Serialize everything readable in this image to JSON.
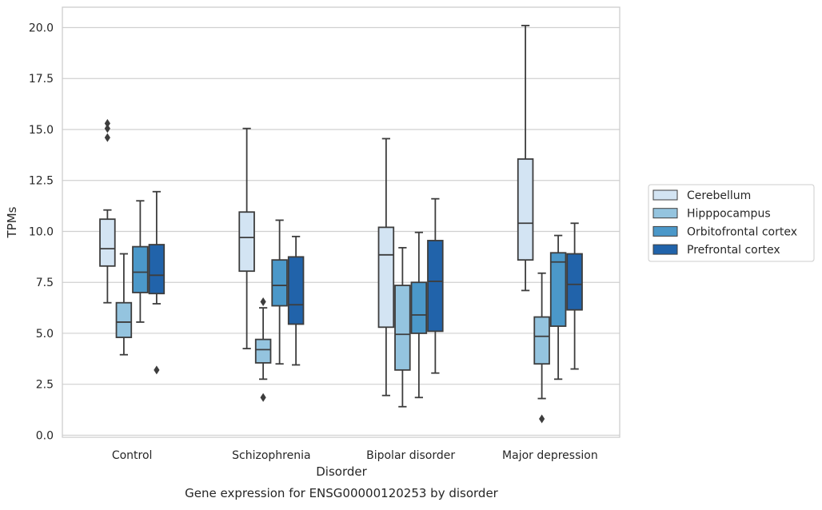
{
  "chart_data": {
    "type": "box",
    "xlabel": "Disorder",
    "ylabel": "TPMs",
    "caption": "Gene expression for ENSG00000120253 by disorder",
    "ylim": [
      -0.1,
      21
    ],
    "yticks": [
      0.0,
      2.5,
      5.0,
      7.5,
      10.0,
      12.5,
      15.0,
      17.5,
      20.0
    ],
    "ytick_labels": [
      "0.0",
      "2.5",
      "5.0",
      "7.5",
      "10.0",
      "12.5",
      "15.0",
      "17.5",
      "20.0"
    ],
    "grid": "horizontal",
    "legend_position": "right",
    "categories": [
      "Control",
      "Schizophrenia",
      "Bipolar disorder",
      "Major depression"
    ],
    "series": [
      {
        "name": "Cerebellum",
        "color": "#d3e4f3",
        "boxes": [
          {
            "whisker_low": 6.5,
            "q1": 8.3,
            "median": 9.15,
            "q3": 10.6,
            "whisker_high": 11.05,
            "outliers": [
              14.6,
              15.05,
              15.3
            ]
          },
          {
            "whisker_low": 4.25,
            "q1": 8.05,
            "median": 9.7,
            "q3": 10.95,
            "whisker_high": 15.05,
            "outliers": []
          },
          {
            "whisker_low": 1.95,
            "q1": 5.3,
            "median": 8.85,
            "q3": 10.2,
            "whisker_high": 14.55,
            "outliers": []
          },
          {
            "whisker_low": 7.1,
            "q1": 8.6,
            "median": 10.4,
            "q3": 13.55,
            "whisker_high": 20.1,
            "outliers": []
          }
        ]
      },
      {
        "name": "Hipppocampus",
        "color": "#94c4df",
        "boxes": [
          {
            "whisker_low": 3.95,
            "q1": 4.8,
            "median": 5.55,
            "q3": 6.5,
            "whisker_high": 8.9,
            "outliers": []
          },
          {
            "whisker_low": 2.75,
            "q1": 3.55,
            "median": 4.2,
            "q3": 4.7,
            "whisker_high": 6.25,
            "outliers": [
              1.85,
              6.55
            ]
          },
          {
            "whisker_low": 1.4,
            "q1": 3.2,
            "median": 4.95,
            "q3": 7.35,
            "whisker_high": 9.2,
            "outliers": []
          },
          {
            "whisker_low": 1.8,
            "q1": 3.5,
            "median": 4.85,
            "q3": 5.8,
            "whisker_high": 7.95,
            "outliers": [
              0.8
            ]
          }
        ]
      },
      {
        "name": "Orbitofrontal cortex",
        "color": "#4b98c9",
        "boxes": [
          {
            "whisker_low": 5.55,
            "q1": 7.0,
            "median": 8.0,
            "q3": 9.25,
            "whisker_high": 11.5,
            "outliers": []
          },
          {
            "whisker_low": 3.5,
            "q1": 6.35,
            "median": 7.35,
            "q3": 8.6,
            "whisker_high": 10.55,
            "outliers": []
          },
          {
            "whisker_low": 1.85,
            "q1": 5.0,
            "median": 5.9,
            "q3": 7.5,
            "whisker_high": 9.95,
            "outliers": []
          },
          {
            "whisker_low": 2.75,
            "q1": 5.35,
            "median": 8.5,
            "q3": 8.95,
            "whisker_high": 9.8,
            "outliers": []
          }
        ]
      },
      {
        "name": "Prefrontal cortex",
        "color": "#2163aa",
        "boxes": [
          {
            "whisker_low": 6.45,
            "q1": 6.95,
            "median": 7.85,
            "q3": 9.35,
            "whisker_high": 11.95,
            "outliers": [
              3.2
            ]
          },
          {
            "whisker_low": 3.45,
            "q1": 5.45,
            "median": 6.4,
            "q3": 8.75,
            "whisker_high": 9.75,
            "outliers": []
          },
          {
            "whisker_low": 3.05,
            "q1": 5.1,
            "median": 7.55,
            "q3": 9.55,
            "whisker_high": 11.6,
            "outliers": []
          },
          {
            "whisker_low": 3.25,
            "q1": 6.15,
            "median": 7.4,
            "q3": 8.9,
            "whisker_high": 10.4,
            "outliers": []
          }
        ]
      }
    ]
  }
}
